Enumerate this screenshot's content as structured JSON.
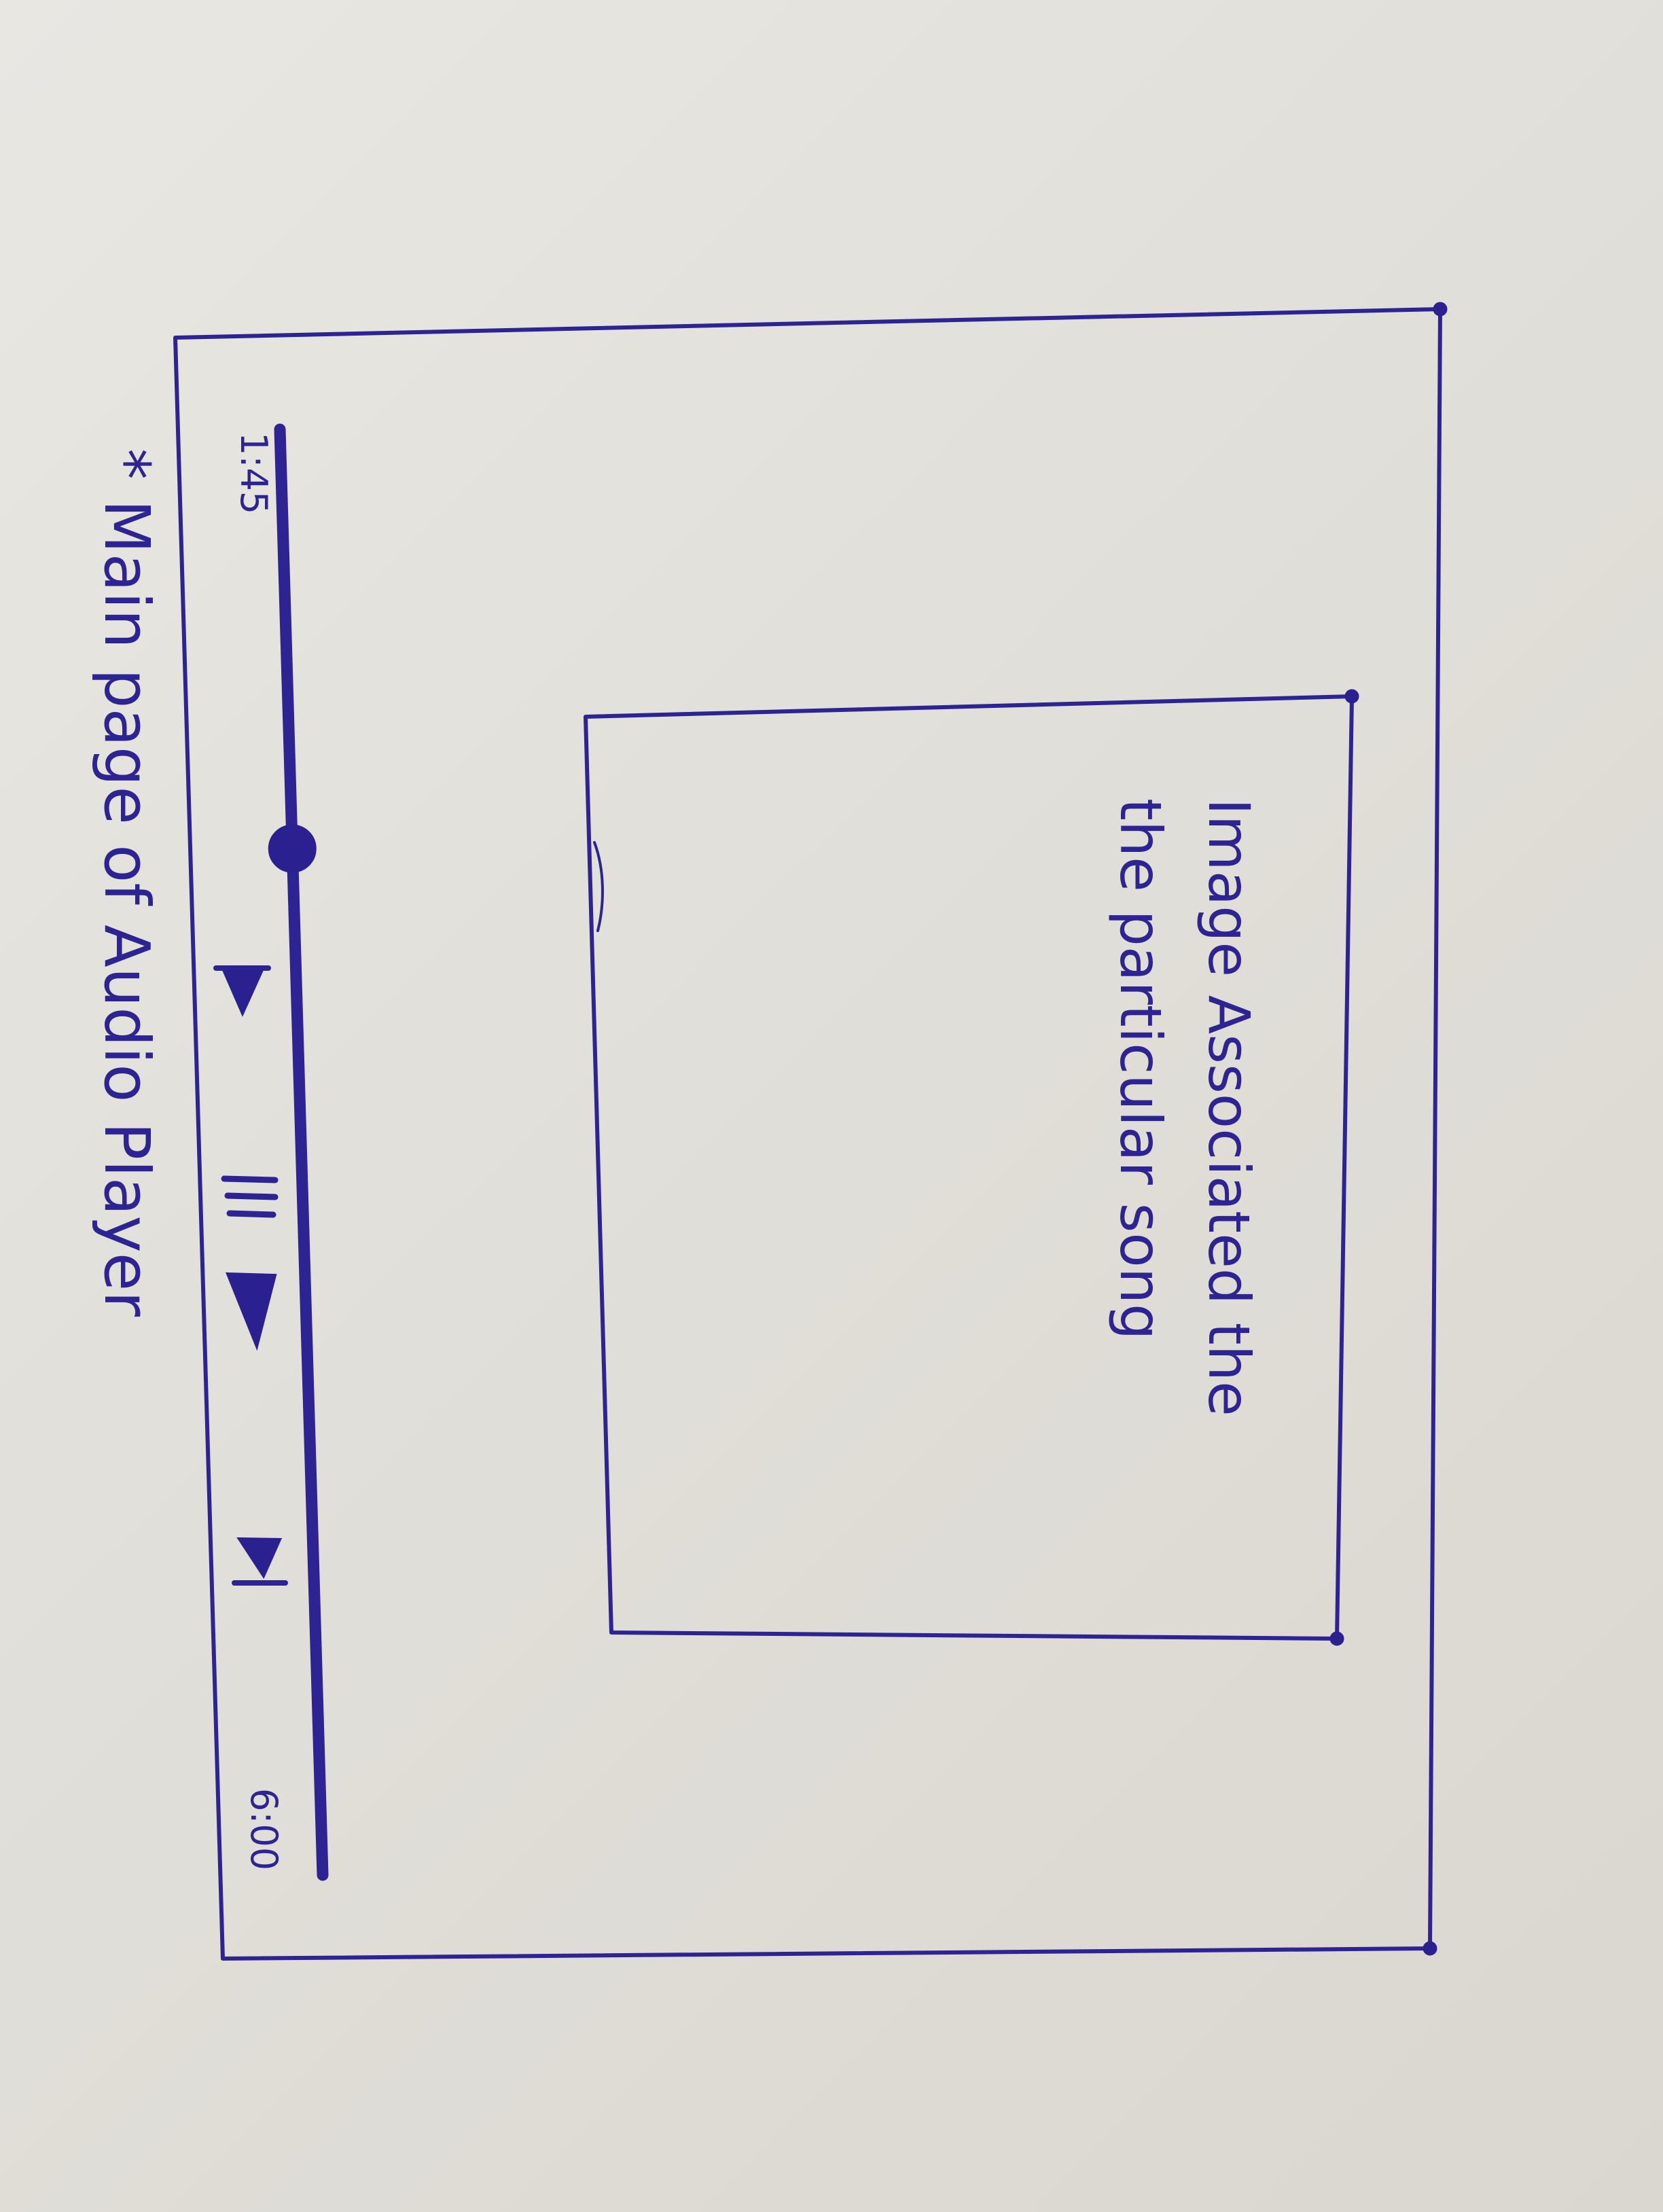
{
  "window_title": "Main page of Audio Player",
  "player": {
    "artwork_caption": {
      "line1": "Image Associated the",
      "line2": "the particular song"
    },
    "elapsed_time": "1:45",
    "total_time": "6:00",
    "progress_fraction": 0.29,
    "controls": {
      "previous_icon": "skip-previous-icon",
      "pause_icon": "pause-icon",
      "play_icon": "play-icon",
      "next_icon": "skip-next-icon"
    }
  },
  "note": "* Main page of Audio Player",
  "colors": {
    "ink": "#2e2392",
    "paper": "#e4e2dc"
  }
}
